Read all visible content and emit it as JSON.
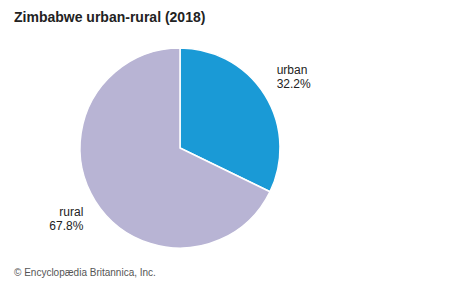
{
  "chart_data": {
    "type": "pie",
    "title": "Zimbabwe urban-rural (2018)",
    "categories": [
      "urban",
      "rural"
    ],
    "values": [
      32.2,
      67.8
    ],
    "value_labels": [
      "32.2%",
      "67.8%"
    ],
    "colors": [
      "#1a9ad6",
      "#b8b4d4"
    ],
    "data_labels": true,
    "annotations": [
      "© Encyclopædia Britannica, Inc."
    ]
  }
}
